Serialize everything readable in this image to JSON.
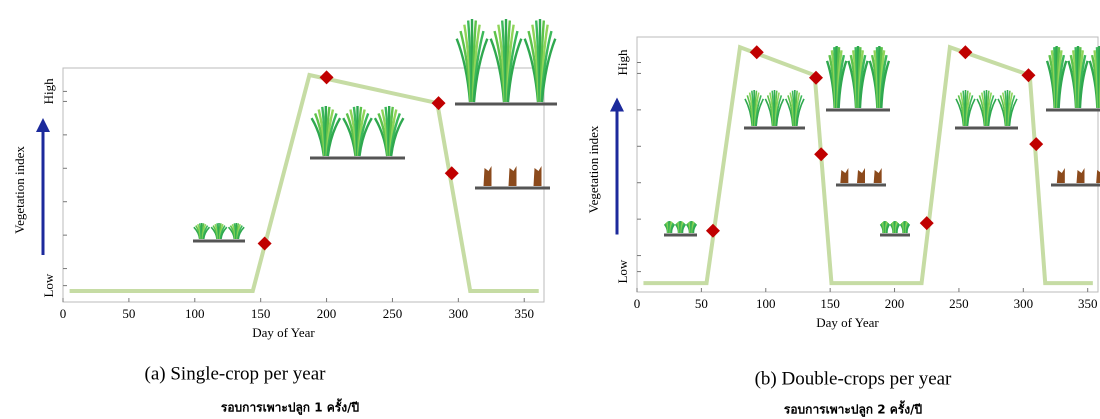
{
  "chart_data": [
    {
      "type": "line",
      "caption": "(a) Single-crop per year",
      "subtitle": "รอบการเพาะปลูก 1 ครั้ง/ปี",
      "xlabel": "Day of Year",
      "ylabel": "Vegetation index",
      "xlim": [
        0,
        365
      ],
      "xticks": [
        0,
        50,
        100,
        150,
        200,
        250,
        300,
        350
      ],
      "ylim": [
        0,
        1
      ],
      "yticks": [
        {
          "value": 0.07,
          "label": "Low"
        },
        {
          "value": 0.9,
          "label": "High"
        }
      ],
      "series": [
        {
          "color": "#c6dca4",
          "x": [
            5,
            144,
            187,
            284,
            309,
            361
          ],
          "values": [
            0.047,
            0.047,
            0.97,
            0.85,
            0.047,
            0.047
          ]
        }
      ],
      "markers": {
        "color": "#c00000",
        "x": [
          153,
          200,
          285,
          295
        ],
        "values": [
          0.25,
          0.96,
          0.85,
          0.55
        ]
      }
    },
    {
      "type": "line",
      "caption": "(b) Double-crops per year",
      "subtitle": "รอบการเพาะปลูก 2 ครั้ง/ปี",
      "xlabel": "Day of Year",
      "ylabel": "Vegetation index",
      "xlim": [
        0,
        358
      ],
      "xticks": [
        0,
        50,
        100,
        150,
        200,
        250,
        300,
        350
      ],
      "ylim": [
        0,
        1
      ],
      "yticks": [
        {
          "value": 0.08,
          "label": "Low"
        },
        {
          "value": 0.9,
          "label": "High"
        }
      ],
      "series": [
        {
          "color": "#c6dca4",
          "x": [
            5,
            54,
            80,
            138,
            151,
            221,
            243,
            305,
            317,
            354
          ],
          "values": [
            0.035,
            0.035,
            0.96,
            0.85,
            0.035,
            0.035,
            0.96,
            0.85,
            0.035,
            0.035
          ]
        }
      ],
      "markers": {
        "color": "#c00000",
        "x": [
          59,
          93,
          139,
          143,
          225,
          255,
          304,
          310
        ],
        "values": [
          0.24,
          0.94,
          0.84,
          0.54,
          0.27,
          0.94,
          0.85,
          0.58
        ]
      }
    }
  ]
}
